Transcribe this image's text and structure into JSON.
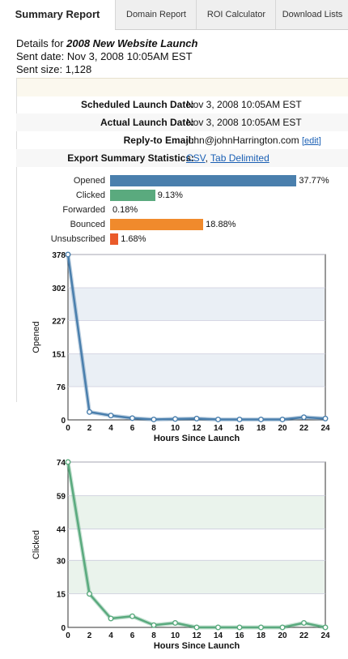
{
  "tabs": [
    {
      "label": "Summary Report",
      "active": true
    },
    {
      "label": "Domain Report",
      "active": false
    },
    {
      "label": "ROI Calculator",
      "active": false
    },
    {
      "label": "Download Lists",
      "active": false
    }
  ],
  "details": {
    "prefix": "Details for ",
    "campaign": "2008 New Website Launch",
    "sent_date": "Sent date: Nov 3, 2008 10:05AM EST",
    "sent_size": "Sent size: 1,128"
  },
  "info": {
    "scheduled_label": "Scheduled Launch Date:",
    "scheduled_value": "Nov 3, 2008 10:05AM EST",
    "actual_label": "Actual Launch Date:",
    "actual_value": "Nov 3, 2008 10:05AM EST",
    "reply_label": "Reply-to Email:",
    "reply_value": "john@johnHarrington.com",
    "edit_label": "edit",
    "export_label": "Export Summary Statistics:",
    "csv_label": "CSV",
    "separator": ",",
    "tab_label": "Tab Delimited"
  },
  "stats": [
    {
      "label": "Opened",
      "value": "37.77%",
      "pct": 37.77,
      "color": "#4a7fad"
    },
    {
      "label": "Clicked",
      "value": "9.13%",
      "pct": 9.13,
      "color": "#5aaa7e"
    },
    {
      "label": "Forwarded",
      "value": "0.18%",
      "pct": 0.18,
      "color": "#e3e3e3"
    },
    {
      "label": "Bounced",
      "value": "18.88%",
      "pct": 18.88,
      "color": "#f08a2c"
    },
    {
      "label": "Unsubscribed",
      "value": "1.68%",
      "pct": 1.68,
      "color": "#ea5a2a"
    }
  ],
  "chart_data": [
    {
      "type": "line",
      "x": [
        0,
        2,
        4,
        6,
        8,
        10,
        12,
        14,
        16,
        18,
        20,
        22,
        24
      ],
      "series": [
        {
          "values": [
            378,
            18,
            10,
            4,
            1,
            2,
            3,
            1,
            1,
            1,
            1,
            6,
            3
          ]
        }
      ],
      "xlabel": "Hours Since Launch",
      "ylabel": "Opened",
      "xticks": [
        "0",
        "2",
        "4",
        "6",
        "8",
        "10",
        "12",
        "14",
        "16",
        "18",
        "20",
        "22",
        "24"
      ],
      "yticks": [
        "0",
        "76",
        "151",
        "227",
        "302",
        "378"
      ],
      "ylim": [
        0,
        378
      ],
      "xlim": [
        0,
        24
      ],
      "color": "#4a7fad",
      "band_color": "#eaeff5",
      "grid": true
    },
    {
      "type": "line",
      "x": [
        0,
        2,
        4,
        6,
        8,
        10,
        12,
        14,
        16,
        18,
        20,
        22,
        24
      ],
      "series": [
        {
          "values": [
            74,
            15,
            4,
            5,
            1,
            2,
            0,
            0,
            0,
            0,
            0,
            2,
            0
          ]
        }
      ],
      "xlabel": "Hours Since Launch",
      "ylabel": "Clicked",
      "xticks": [
        "0",
        "2",
        "4",
        "6",
        "8",
        "10",
        "12",
        "14",
        "16",
        "18",
        "20",
        "22",
        "24"
      ],
      "yticks": [
        "0",
        "15",
        "30",
        "44",
        "59",
        "74"
      ],
      "ylim": [
        0,
        74
      ],
      "xlim": [
        0,
        24
      ],
      "color": "#5aaa7e",
      "band_color": "#eaf3ec",
      "grid": true
    }
  ]
}
